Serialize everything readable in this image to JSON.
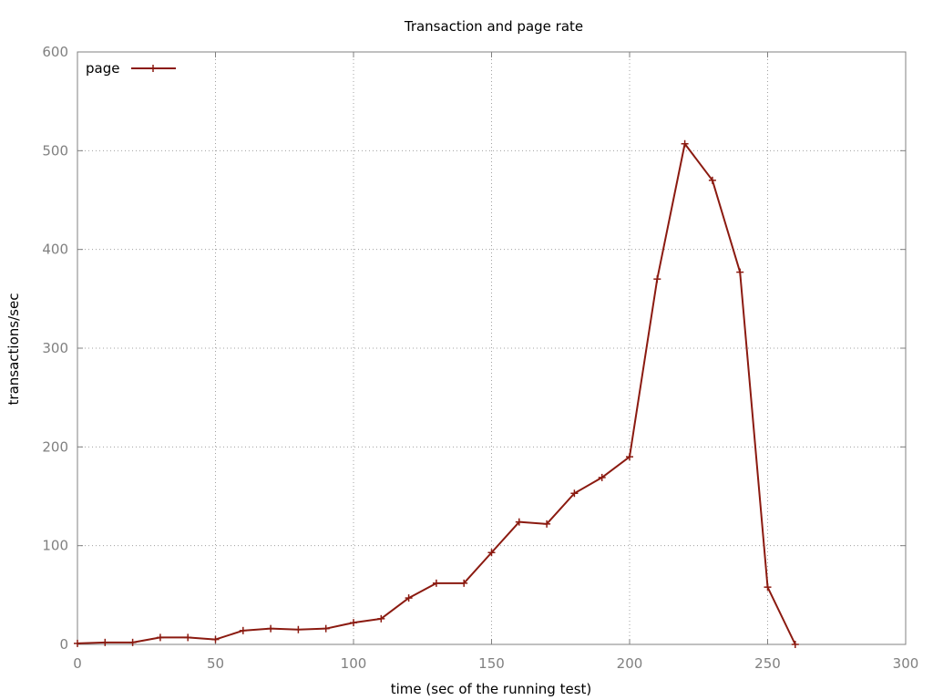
{
  "chart_data": {
    "type": "line",
    "title": "Transaction and page rate",
    "xlabel": "time (sec of the running test)",
    "ylabel": "transactions/sec",
    "xlim": [
      0,
      300
    ],
    "ylim": [
      0,
      600
    ],
    "xticks": [
      0,
      50,
      100,
      150,
      200,
      250,
      300
    ],
    "yticks": [
      0,
      100,
      200,
      300,
      400,
      500,
      600
    ],
    "grid": true,
    "legend_position": "top-left",
    "series": [
      {
        "name": "page",
        "color": "#8b1a10",
        "marker": "plus",
        "x": [
          0,
          10,
          20,
          30,
          40,
          50,
          60,
          70,
          80,
          90,
          100,
          110,
          120,
          130,
          140,
          150,
          160,
          170,
          180,
          190,
          200,
          210,
          220,
          230,
          240,
          250,
          260
        ],
        "y": [
          1,
          2,
          2,
          7,
          7,
          5,
          14,
          16,
          15,
          16,
          22,
          26,
          47,
          62,
          62,
          93,
          124,
          122,
          153,
          169,
          190,
          370,
          507,
          470,
          377,
          58,
          0
        ]
      }
    ]
  }
}
